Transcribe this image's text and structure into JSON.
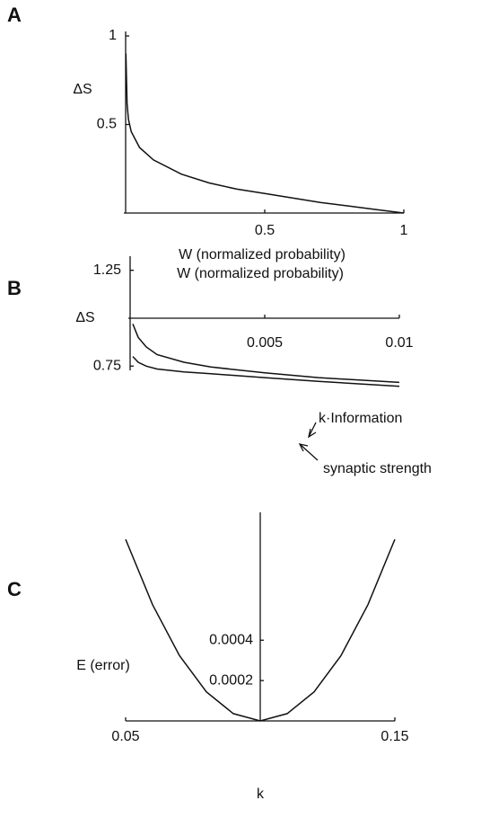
{
  "chart_data": [
    {
      "type": "line",
      "panel": "A",
      "ylabel": "ΔS",
      "xlabel": "W (normalized probability)",
      "x": [
        0.001,
        0.005,
        0.01,
        0.02,
        0.05,
        0.1,
        0.2,
        0.3,
        0.4,
        0.5,
        0.6,
        0.7,
        0.8,
        0.9,
        1
      ],
      "series": [
        {
          "color": "#111111",
          "values": [
            0.9,
            0.62,
            0.53,
            0.46,
            0.37,
            0.3,
            0.22,
            0.17,
            0.135,
            0.11,
            0.085,
            0.06,
            0.04,
            0.02,
            0
          ]
        }
      ],
      "xlim": [
        0,
        1
      ],
      "ylim": [
        0,
        1
      ],
      "xticks": [
        0.5,
        1
      ],
      "yticks": [
        0.5,
        1
      ]
    },
    {
      "type": "line",
      "panel": "B",
      "ylabel": "ΔS",
      "xlabel": "W (normalized probability)",
      "x": [
        0.0001,
        0.0003,
        0.0006,
        0.001,
        0.002,
        0.003,
        0.005,
        0.007,
        0.01
      ],
      "series": [
        {
          "name": "k·Information",
          "color": "#111111",
          "values": [
            0.97,
            0.9,
            0.85,
            0.81,
            0.77,
            0.745,
            0.715,
            0.69,
            0.665
          ]
        },
        {
          "name": "synaptic strength",
          "color": "#111111",
          "values": [
            0.8,
            0.77,
            0.75,
            0.735,
            0.72,
            0.71,
            0.69,
            0.67,
            0.645
          ]
        }
      ],
      "xlim": [
        0,
        0.01
      ],
      "ylim": [
        0.62,
        1.3
      ],
      "xticks": [
        0.005,
        0.01
      ],
      "yticks": [
        0.75,
        1.25
      ],
      "xaxis_at": 1
    },
    {
      "type": "line",
      "panel": "C",
      "ylabel": "E (error)",
      "xlabel": "k",
      "x": [
        0.05,
        0.06,
        0.07,
        0.08,
        0.09,
        0.1,
        0.11,
        0.12,
        0.13,
        0.14,
        0.15
      ],
      "series": [
        {
          "color": "#111111",
          "values": [
            0.0009,
            0.000576,
            0.000324,
            0.000144,
            3.6e-05,
            0,
            3.6e-05,
            0.000144,
            0.000324,
            0.000576,
            0.0009
          ]
        }
      ],
      "xlim": [
        0.05,
        0.15
      ],
      "ylim": [
        0,
        0.0009
      ],
      "xticks": [
        0.05,
        0.15
      ],
      "yticks": [
        0.0002,
        0.0004
      ],
      "yaxis_at": 0.1
    }
  ]
}
